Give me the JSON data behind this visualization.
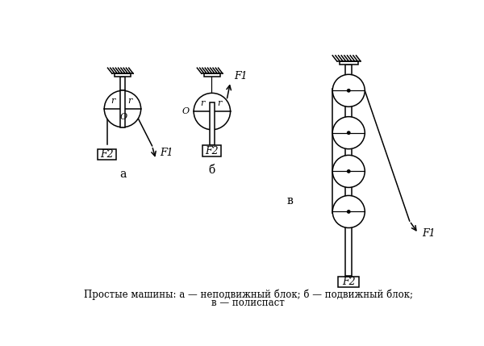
{
  "caption_line1": "Простые машины: а — неподвижный блок; б — подвижный блок;",
  "caption_line2": "в — полиспаст",
  "bg_color": "#ffffff",
  "line_color": "#000000",
  "label_a": "а",
  "label_b": "б",
  "label_v": "в",
  "label_F1": "F1",
  "label_F2": "F2",
  "label_O": "O",
  "label_r": "r"
}
